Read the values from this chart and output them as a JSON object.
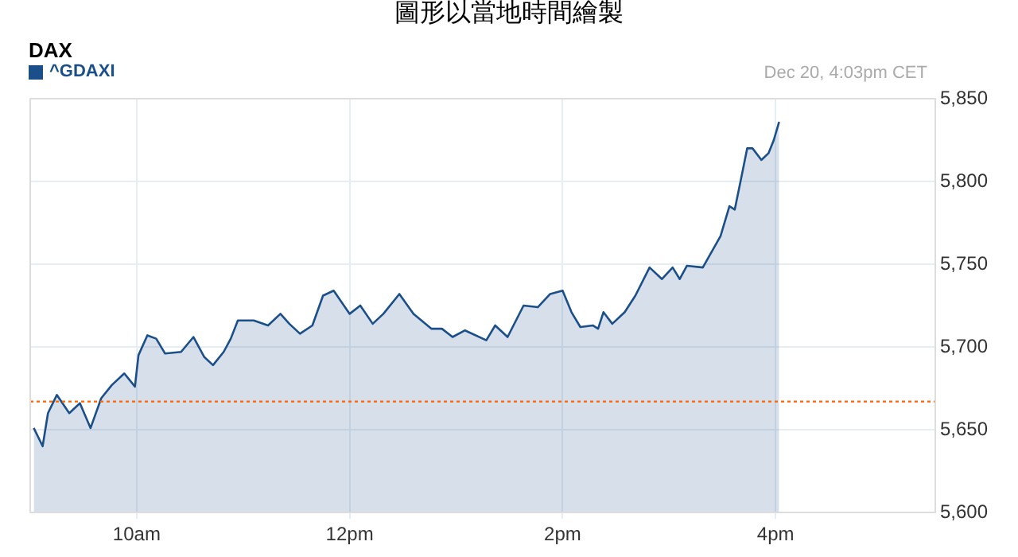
{
  "chart_data": {
    "type": "area",
    "title": "圖形以當地時間繪製",
    "subtitle": "DAX",
    "annotations": [
      "Dec 20, 4:03pm CET"
    ],
    "legend": "top left",
    "grid": true,
    "marker": "none",
    "line_style": "solid",
    "xlim": [
      "--12-20T09:00",
      "--12-20T17:30"
    ],
    "xticks": [
      {
        "value": "--12-20T10:00",
        "label": "10am"
      },
      {
        "value": "--12-20T12:00",
        "label": "12pm"
      },
      {
        "value": "--12-20T14:00",
        "label": "2pm"
      },
      {
        "value": "--12-20T16:00",
        "label": "4pm"
      }
    ],
    "ylim": [
      5600,
      5850
    ],
    "yticks": [
      {
        "value": 5600,
        "label": "5,600"
      },
      {
        "value": 5650,
        "label": "5,650"
      },
      {
        "value": 5700,
        "label": "5,700"
      },
      {
        "value": 5750,
        "label": "5,750"
      },
      {
        "value": 5800,
        "label": "5,800"
      },
      {
        "value": 5850,
        "label": "5,850"
      }
    ],
    "ref_lines": [
      {
        "axis": "y",
        "value": 5667,
        "color": "#ff6600",
        "line_style": "dotted"
      }
    ],
    "series": [
      {
        "name": "^GDAXI",
        "color": "#1b4f8a",
        "x": [
          "--12-20T09:02",
          "--12-20T09:07",
          "--12-20T09:10",
          "--12-20T09:15",
          "--12-20T09:22",
          "--12-20T09:28",
          "--12-20T09:34",
          "--12-20T09:40",
          "--12-20T09:46",
          "--12-20T09:53",
          "--12-20T09:59",
          "--12-20T10:01",
          "--12-20T10:06",
          "--12-20T10:11",
          "--12-20T10:16",
          "--12-20T10:25",
          "--12-20T10:32",
          "--12-20T10:38",
          "--12-20T10:43",
          "--12-20T10:49",
          "--12-20T10:53",
          "--12-20T10:57",
          "--12-20T11:06",
          "--12-20T11:14",
          "--12-20T11:21",
          "--12-20T11:26",
          "--12-20T11:32",
          "--12-20T11:39",
          "--12-20T11:45",
          "--12-20T11:51",
          "--12-20T12:00",
          "--12-20T12:06",
          "--12-20T12:13",
          "--12-20T12:19",
          "--12-20T12:28",
          "--12-20T12:36",
          "--12-20T12:46",
          "--12-20T12:52",
          "--12-20T12:58",
          "--12-20T13:05",
          "--12-20T13:17",
          "--12-20T13:22",
          "--12-20T13:29",
          "--12-20T13:38",
          "--12-20T13:46",
          "--12-20T13:53",
          "--12-20T14:00",
          "--12-20T14:05",
          "--12-20T14:10",
          "--12-20T14:17",
          "--12-20T14:20",
          "--12-20T14:23",
          "--12-20T14:28",
          "--12-20T14:35",
          "--12-20T14:41",
          "--12-20T14:49",
          "--12-20T14:56",
          "--12-20T15:02",
          "--12-20T15:06",
          "--12-20T15:10",
          "--12-20T15:19",
          "--12-20T15:29",
          "--12-20T15:34",
          "--12-20T15:37",
          "--12-20T15:41",
          "--12-20T15:44",
          "--12-20T15:47",
          "--12-20T15:52",
          "--12-20T15:56",
          "--12-20T15:59",
          "--12-20T16:02"
        ],
        "values": [
          5651,
          5640,
          5660,
          5671,
          5660,
          5666,
          5651,
          5669,
          5677,
          5684,
          5676,
          5695,
          5707,
          5705,
          5696,
          5697,
          5706,
          5694,
          5689,
          5697,
          5705,
          5716,
          5716,
          5713,
          5720,
          5714,
          5708,
          5713,
          5731,
          5734,
          5720,
          5725,
          5714,
          5720,
          5732,
          5720,
          5711,
          5711,
          5706,
          5710,
          5704,
          5713,
          5706,
          5725,
          5724,
          5732,
          5734,
          5721,
          5712,
          5713,
          5711,
          5721,
          5714,
          5721,
          5731,
          5748,
          5741,
          5748,
          5741,
          5749,
          5748,
          5767,
          5785,
          5783,
          5804,
          5820,
          5820,
          5813,
          5817,
          5825,
          5836
        ]
      }
    ]
  }
}
